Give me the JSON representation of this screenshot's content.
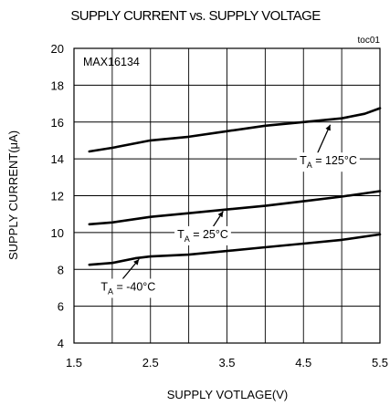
{
  "chart_data": {
    "type": "line",
    "title": "SUPPLY CURRENT vs. SUPPLY VOLTAGE",
    "xlabel": "SUPPLY VOTLAGE(V)",
    "ylabel": "SUPPLY CURRENT(μA)",
    "xlim": [
      1.5,
      5.5
    ],
    "ylim": [
      4,
      20
    ],
    "xticks": [
      "1.5",
      "2.5",
      "3.5",
      "4.5",
      "5.5"
    ],
    "yticks": [
      "4",
      "6",
      "8",
      "10",
      "12",
      "14",
      "16",
      "18",
      "20"
    ],
    "grid": true,
    "legend_placement": "none",
    "part_label": "MAX16134",
    "toc_label": "toc01",
    "series": [
      {
        "label_main": "T",
        "label_sub": "A",
        "label_rest": " = 125°C",
        "x": [
          1.7,
          2.0,
          2.5,
          3.0,
          3.5,
          4.0,
          4.5,
          5.0,
          5.3,
          5.5
        ],
        "y": [
          14.4,
          14.6,
          15.0,
          15.2,
          15.5,
          15.8,
          16.0,
          16.2,
          16.45,
          16.75
        ]
      },
      {
        "label_main": "T",
        "label_sub": "A",
        "label_rest": " = 25°C",
        "x": [
          1.7,
          2.0,
          2.5,
          3.0,
          3.5,
          4.0,
          4.5,
          5.0,
          5.5
        ],
        "y": [
          10.45,
          10.55,
          10.85,
          11.05,
          11.25,
          11.45,
          11.7,
          11.95,
          12.25
        ]
      },
      {
        "label_main": "T",
        "label_sub": "A",
        "label_rest": " = -40°C",
        "x": [
          1.7,
          2.0,
          2.3,
          2.5,
          3.0,
          3.5,
          4.0,
          4.5,
          5.0,
          5.5
        ],
        "y": [
          8.25,
          8.35,
          8.6,
          8.7,
          8.8,
          9.0,
          9.2,
          9.4,
          9.6,
          9.9
        ]
      }
    ],
    "annotations": [
      {
        "series": 0,
        "text_x": 4.45,
        "text_y": 13.7,
        "arrow_from": [
          4.65,
          14.0
        ],
        "arrow_to": [
          4.85,
          15.85
        ]
      },
      {
        "series": 1,
        "text_x": 2.85,
        "text_y": 9.7,
        "arrow_from": [
          3.3,
          10.2
        ],
        "arrow_to": [
          3.45,
          11.15
        ]
      },
      {
        "series": 2,
        "text_x": 1.85,
        "text_y": 6.85,
        "arrow_from": [
          2.1,
          7.3
        ],
        "arrow_to": [
          2.35,
          8.55
        ]
      }
    ]
  }
}
